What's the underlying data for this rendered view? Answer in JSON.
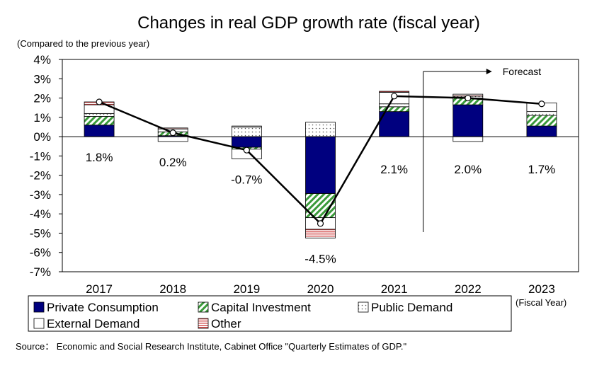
{
  "chart_data": {
    "type": "bar",
    "title": "Changes in real GDP growth rate (fiscal year)",
    "subtitle": "(Compared to the previous year)",
    "x_unit_label": "(Fiscal Year)",
    "forecast_label": "Forecast",
    "source": "Source： Economic and Social Research Institute, Cabinet Office \"Quarterly Estimates of GDP.\"",
    "categories": [
      "2017",
      "2018",
      "2019",
      "2020",
      "2021",
      "2022",
      "2023"
    ],
    "ylim": [
      -7,
      4
    ],
    "yticks": [
      4,
      3,
      2,
      1,
      0,
      -1,
      -2,
      -3,
      -4,
      -5,
      -6,
      -7
    ],
    "ytick_labels": [
      "4%",
      "3%",
      "2%",
      "1%",
      "0%",
      "-1%",
      "-2%",
      "-3%",
      "-4%",
      "-5%",
      "-6%",
      "-7%"
    ],
    "stacked": true,
    "series": [
      {
        "name": "Private Consumption",
        "color": "#00007f",
        "pattern": "solid",
        "values": [
          0.6,
          0.05,
          -0.55,
          -2.95,
          1.3,
          1.65,
          0.55
        ]
      },
      {
        "name": "Capital Investment",
        "color": "#3a9a3a",
        "pattern": "diagonal-stripes",
        "values": [
          0.45,
          0.2,
          -0.1,
          -1.25,
          0.25,
          0.35,
          0.55
        ]
      },
      {
        "name": "Public Demand",
        "color": "#555555",
        "pattern": "dots",
        "values": [
          0.15,
          0.15,
          0.5,
          0.75,
          0.15,
          0.1,
          0.2
        ]
      },
      {
        "name": "External Demand",
        "color": "#ffffff",
        "pattern": "hollow",
        "values": [
          0.45,
          -0.25,
          -0.5,
          -0.6,
          0.6,
          -0.25,
          0.45
        ]
      },
      {
        "name": "Other",
        "color": "#d04040",
        "pattern": "horizontal-lines",
        "values": [
          0.15,
          0.05,
          0.05,
          -0.45,
          0.05,
          0.1,
          0.0
        ]
      }
    ],
    "line_series": {
      "values": [
        1.8,
        0.2,
        -0.7,
        -4.5,
        2.1,
        2.0,
        1.7
      ],
      "labels": [
        "1.8%",
        "0.2%",
        "-0.7%",
        "-4.5%",
        "2.1%",
        "2.0%",
        "1.7%"
      ]
    },
    "forecast_start_category": "2022",
    "grid": false,
    "legend_position": "bottom"
  }
}
